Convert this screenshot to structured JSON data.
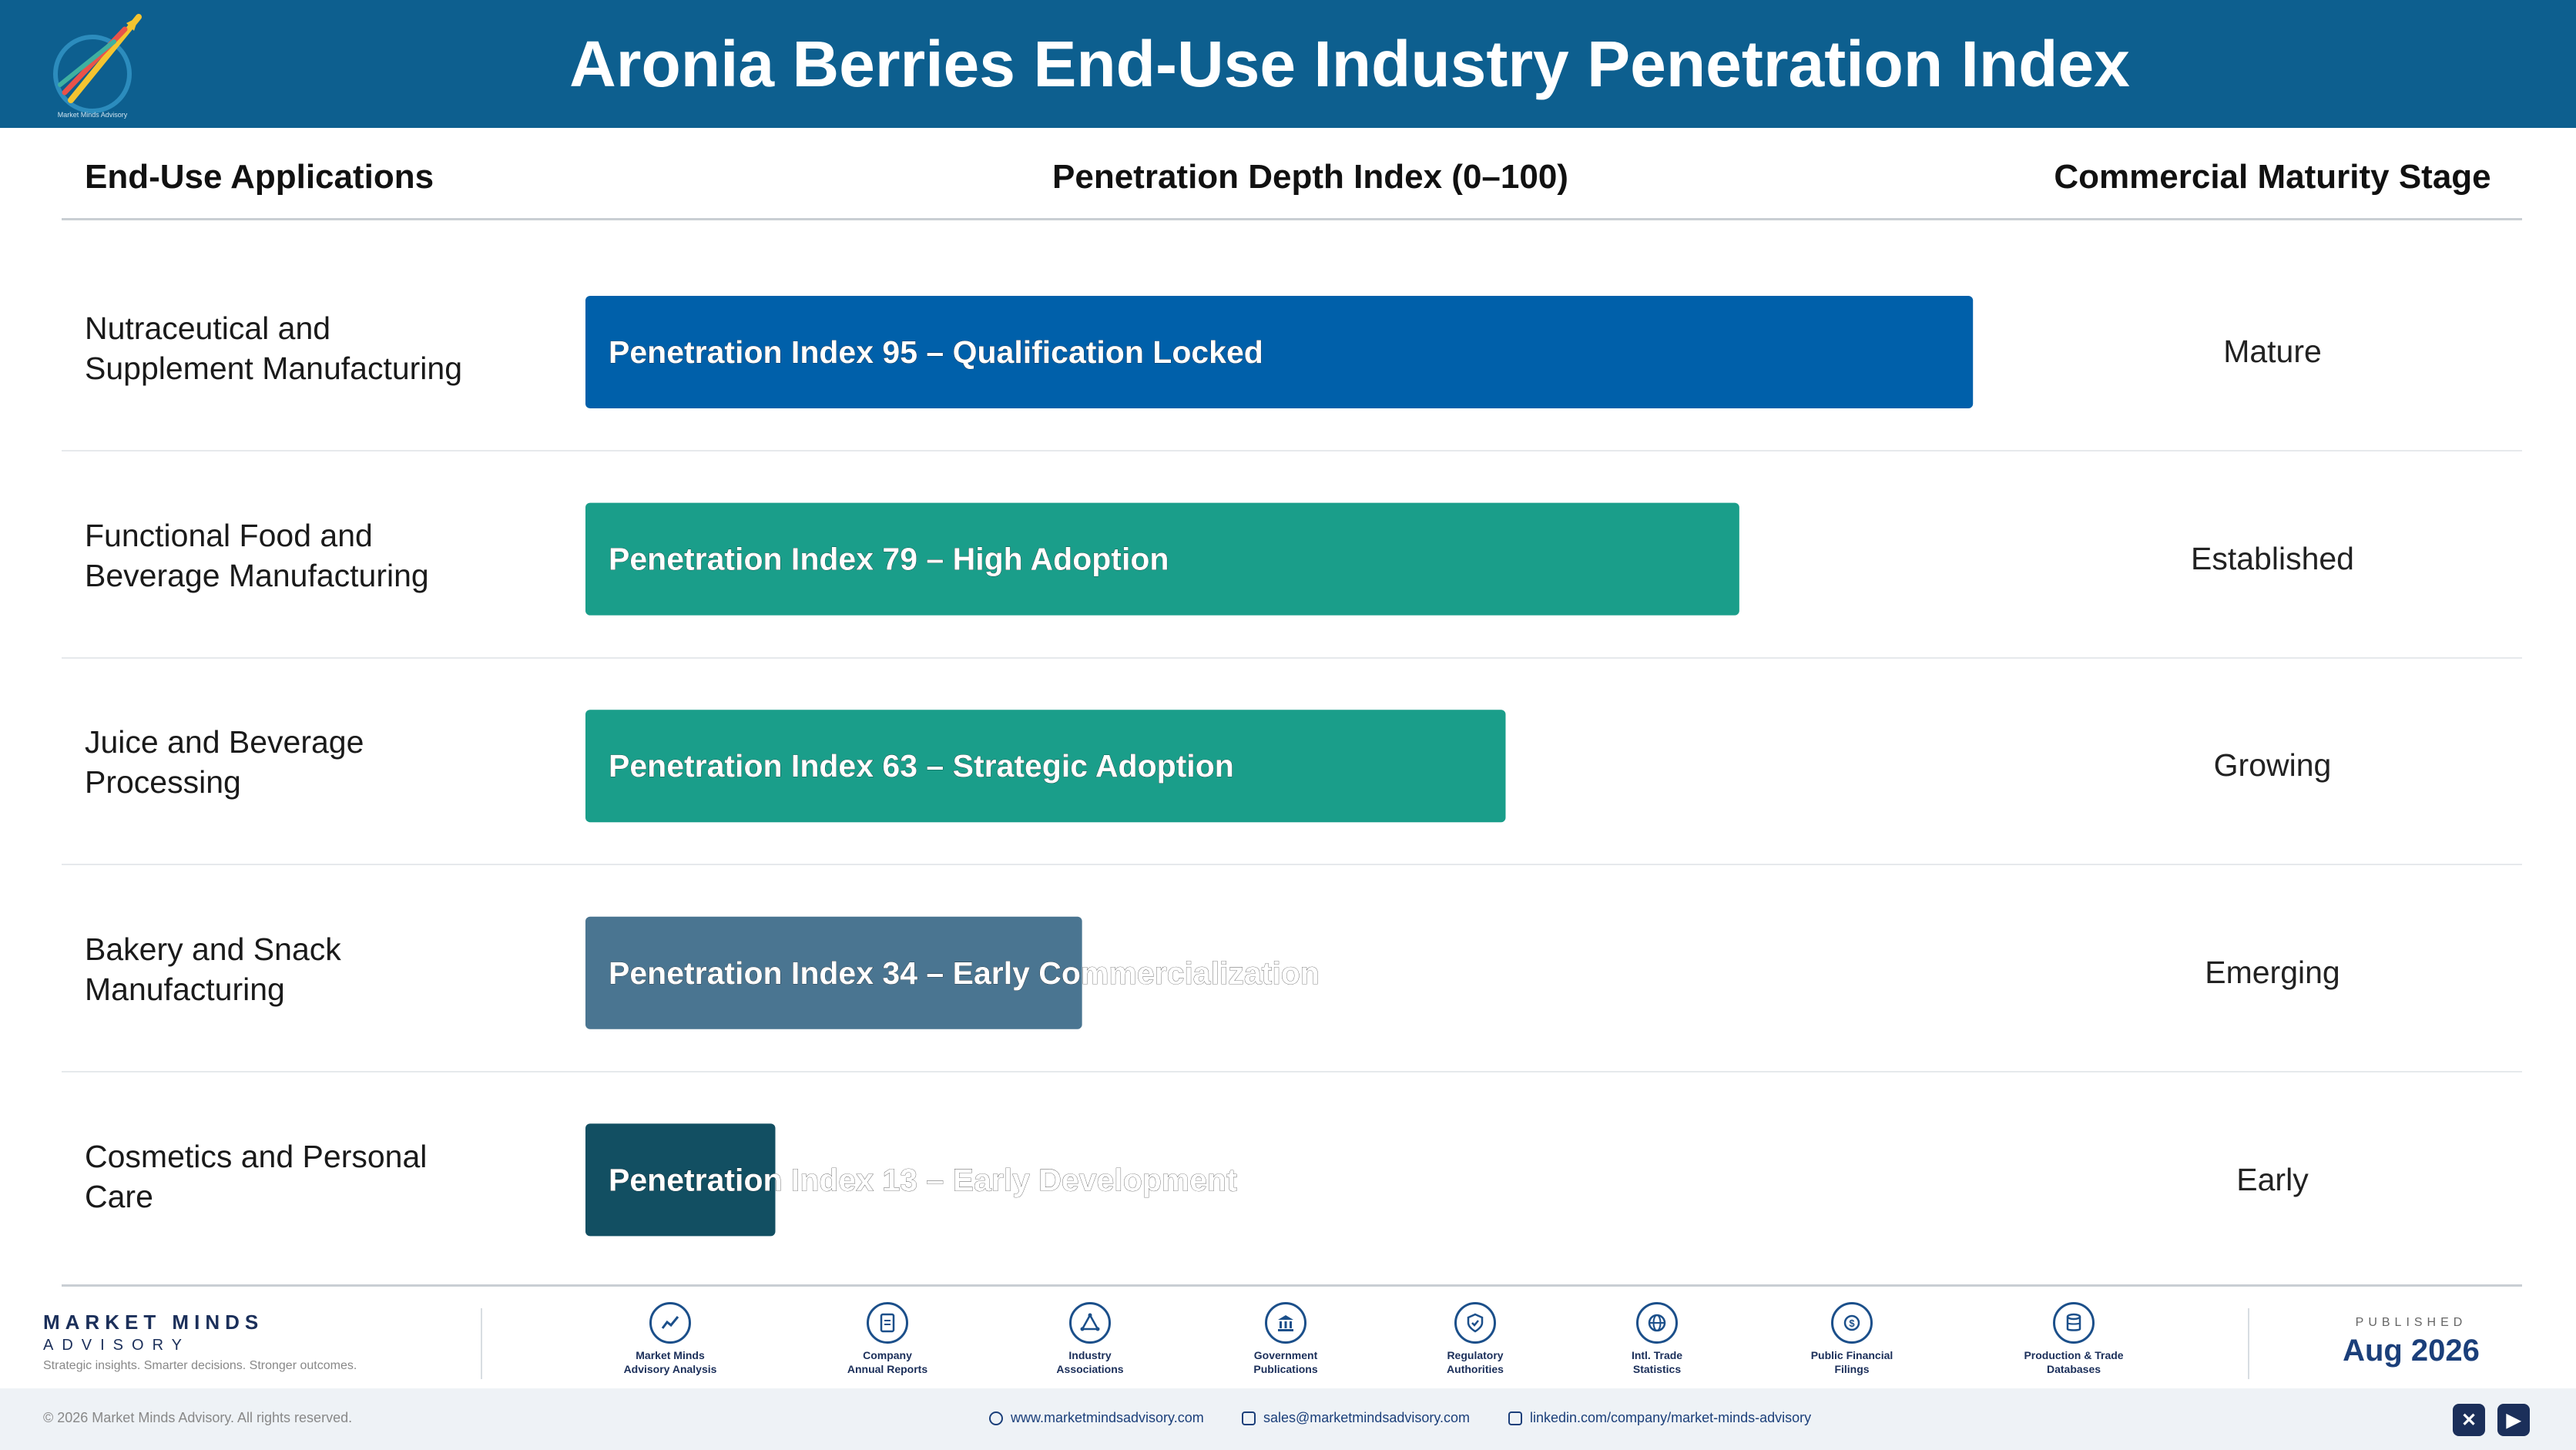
{
  "header": {
    "title": "Aronia Berries End-Use Industry Penetration Index",
    "logo_caption": "Market Minds Advisory"
  },
  "columns": {
    "applications": "End-Use Applications",
    "index": "Penetration Depth Index (0–100)",
    "stage": "Commercial Maturity Stage"
  },
  "rows": [
    {
      "app_line1": "Nutraceutical and",
      "app_line2": "Supplement Manufacturing",
      "stage": "Mature"
    },
    {
      "app_line1": "Functional Food and",
      "app_line2": "Beverage Manufacturing",
      "stage": "Established"
    },
    {
      "app_line1": "Juice and Beverage",
      "app_line2": "Processing",
      "stage": "Growing"
    },
    {
      "app_line1": "Bakery and Snack",
      "app_line2": "Manufacturing",
      "stage": "Emerging"
    },
    {
      "app_line1": "Cosmetics and Personal",
      "app_line2": "Care",
      "stage": "Early"
    }
  ],
  "chart_data": {
    "type": "bar",
    "orientation": "horizontal",
    "categories": [
      "Nutraceutical and Supplement Manufacturing",
      "Functional Food and Beverage Manufacturing",
      "Juice and Beverage Processing",
      "Bakery and Snack Manufacturing",
      "Cosmetics and Personal Care"
    ],
    "values": [
      95,
      79,
      63,
      34,
      13
    ],
    "bar_labels": [
      "Penetration Index 95 – Qualification Locked",
      "Penetration Index 79 – High Adoption",
      "Penetration Index 63 – Strategic Adoption",
      "Penetration Index 34 – Early Commercialization",
      "Penetration Index 13 – Early Development"
    ],
    "colors": [
      "#0060aa",
      "#1a9e8a",
      "#1a9e8a",
      "#4a7591",
      "#124f62"
    ],
    "xlim": [
      0,
      100
    ],
    "grid": false,
    "legend": "none"
  },
  "footer": {
    "brand_name": "MARKET MINDS",
    "brand_sub": "ADVISORY",
    "tagline": "Strategic insights. Smarter decisions. Stronger outcomes.",
    "sources": [
      {
        "icon": "chart-line-icon",
        "line1": "Market Minds",
        "line2": "Advisory Analysis"
      },
      {
        "icon": "document-icon",
        "line1": "Company",
        "line2": "Annual Reports"
      },
      {
        "icon": "network-icon",
        "line1": "Industry",
        "line2": "Associations"
      },
      {
        "icon": "government-building-icon",
        "line1": "Government",
        "line2": "Publications"
      },
      {
        "icon": "shield-check-icon",
        "line1": "Regulatory",
        "line2": "Authorities"
      },
      {
        "icon": "globe-icon",
        "line1": "Intl. Trade",
        "line2": "Statistics"
      },
      {
        "icon": "coin-icon",
        "line1": "Public Financial",
        "line2": "Filings"
      },
      {
        "icon": "database-icon",
        "line1": "Production & Trade",
        "line2": "Databases"
      }
    ],
    "published_label": "PUBLISHED",
    "published_date": "Aug 2026",
    "copyright": "© 2026 Market Minds Advisory. All rights reserved.",
    "website": "www.marketmindsadvisory.com",
    "email": "sales@marketmindsadvisory.com",
    "linkedin": "linkedin.com/company/market-minds-advisory"
  }
}
